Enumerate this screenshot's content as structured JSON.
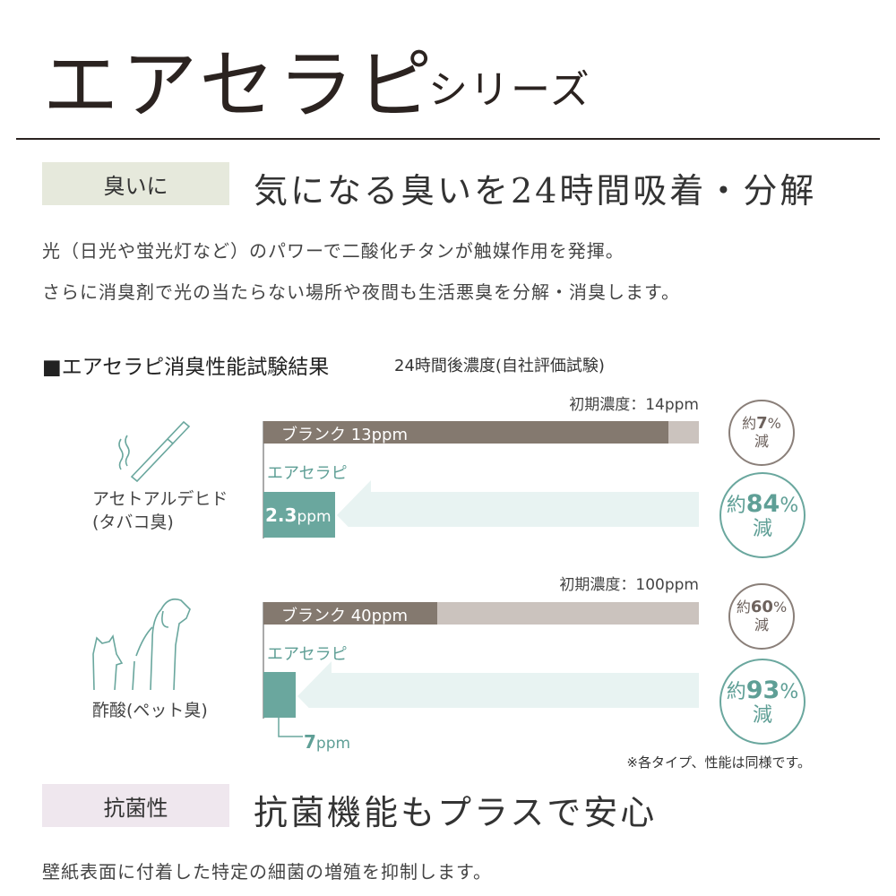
{
  "header": {
    "title": "エアセラピ",
    "subtitle": "シリーズ"
  },
  "odor": {
    "tag": "臭いに",
    "heading": "気になる臭いを24時間吸着・分解",
    "paragraphs": [
      "光（日光や蛍光灯など）のパワーで二酸化チタンが触媒作用を発揮。",
      "さらに消臭剤で光の当たらない場所や夜間も生活悪臭を分解・消臭します。"
    ]
  },
  "test": {
    "title": "■エアセラピ消臭性能試験結果",
    "subtitle": "24時間後濃度(自社評価試験)",
    "note": "※各タイプ、性能は同様です。",
    "items": [
      {
        "substance": "アセトアルデヒド",
        "odor": "(タバコ臭)",
        "icon": "cigarette-icon",
        "initial": "初期濃度：14ppm",
        "blank_label": "ブランク 13ppm",
        "product_label": "エアセラピ",
        "product_value": "2.3",
        "unit": "ppm",
        "blank_reduction_prefix": "約",
        "blank_reduction": "7",
        "pct": "%",
        "reduction_suffix": "減",
        "product_reduction": "84"
      },
      {
        "substance": "酢酸",
        "odor": "(ペット臭)",
        "icon": "dog-cat-icon",
        "initial": "初期濃度：100ppm",
        "blank_label": "ブランク 40ppm",
        "product_label": "エアセラピ",
        "product_value": "7",
        "unit": "ppm",
        "blank_reduction_prefix": "約",
        "blank_reduction": "60",
        "pct": "%",
        "reduction_suffix": "減",
        "product_reduction": "93"
      }
    ]
  },
  "antibacterial": {
    "tag": "抗菌性",
    "heading": "抗菌機能もプラスで安心",
    "paragraph": "壁紙表面に付着した特定の細菌の増殖を抑制します。"
  },
  "colors": {
    "blank": "#84796f",
    "initial": "#cbc3be",
    "product": "#6aa79e",
    "arrow": "#e8f3f2",
    "odor_tag": "#e6e9dc",
    "antibacterial_tag": "#efe7ee"
  },
  "chart_data": [
    {
      "type": "bar",
      "categories": [
        "初期濃度",
        "ブランク",
        "エアセラピ"
      ],
      "values": [
        14,
        13,
        2.3
      ],
      "unit": "ppm",
      "reductions": {
        "ブランク": 7,
        "エアセラピ": 84
      }
    },
    {
      "type": "bar",
      "categories": [
        "初期濃度",
        "ブランク",
        "エアセラピ"
      ],
      "values": [
        100,
        40,
        7
      ],
      "unit": "ppm",
      "reductions": {
        "ブランク": 60,
        "エアセラピ": 93
      }
    }
  ]
}
